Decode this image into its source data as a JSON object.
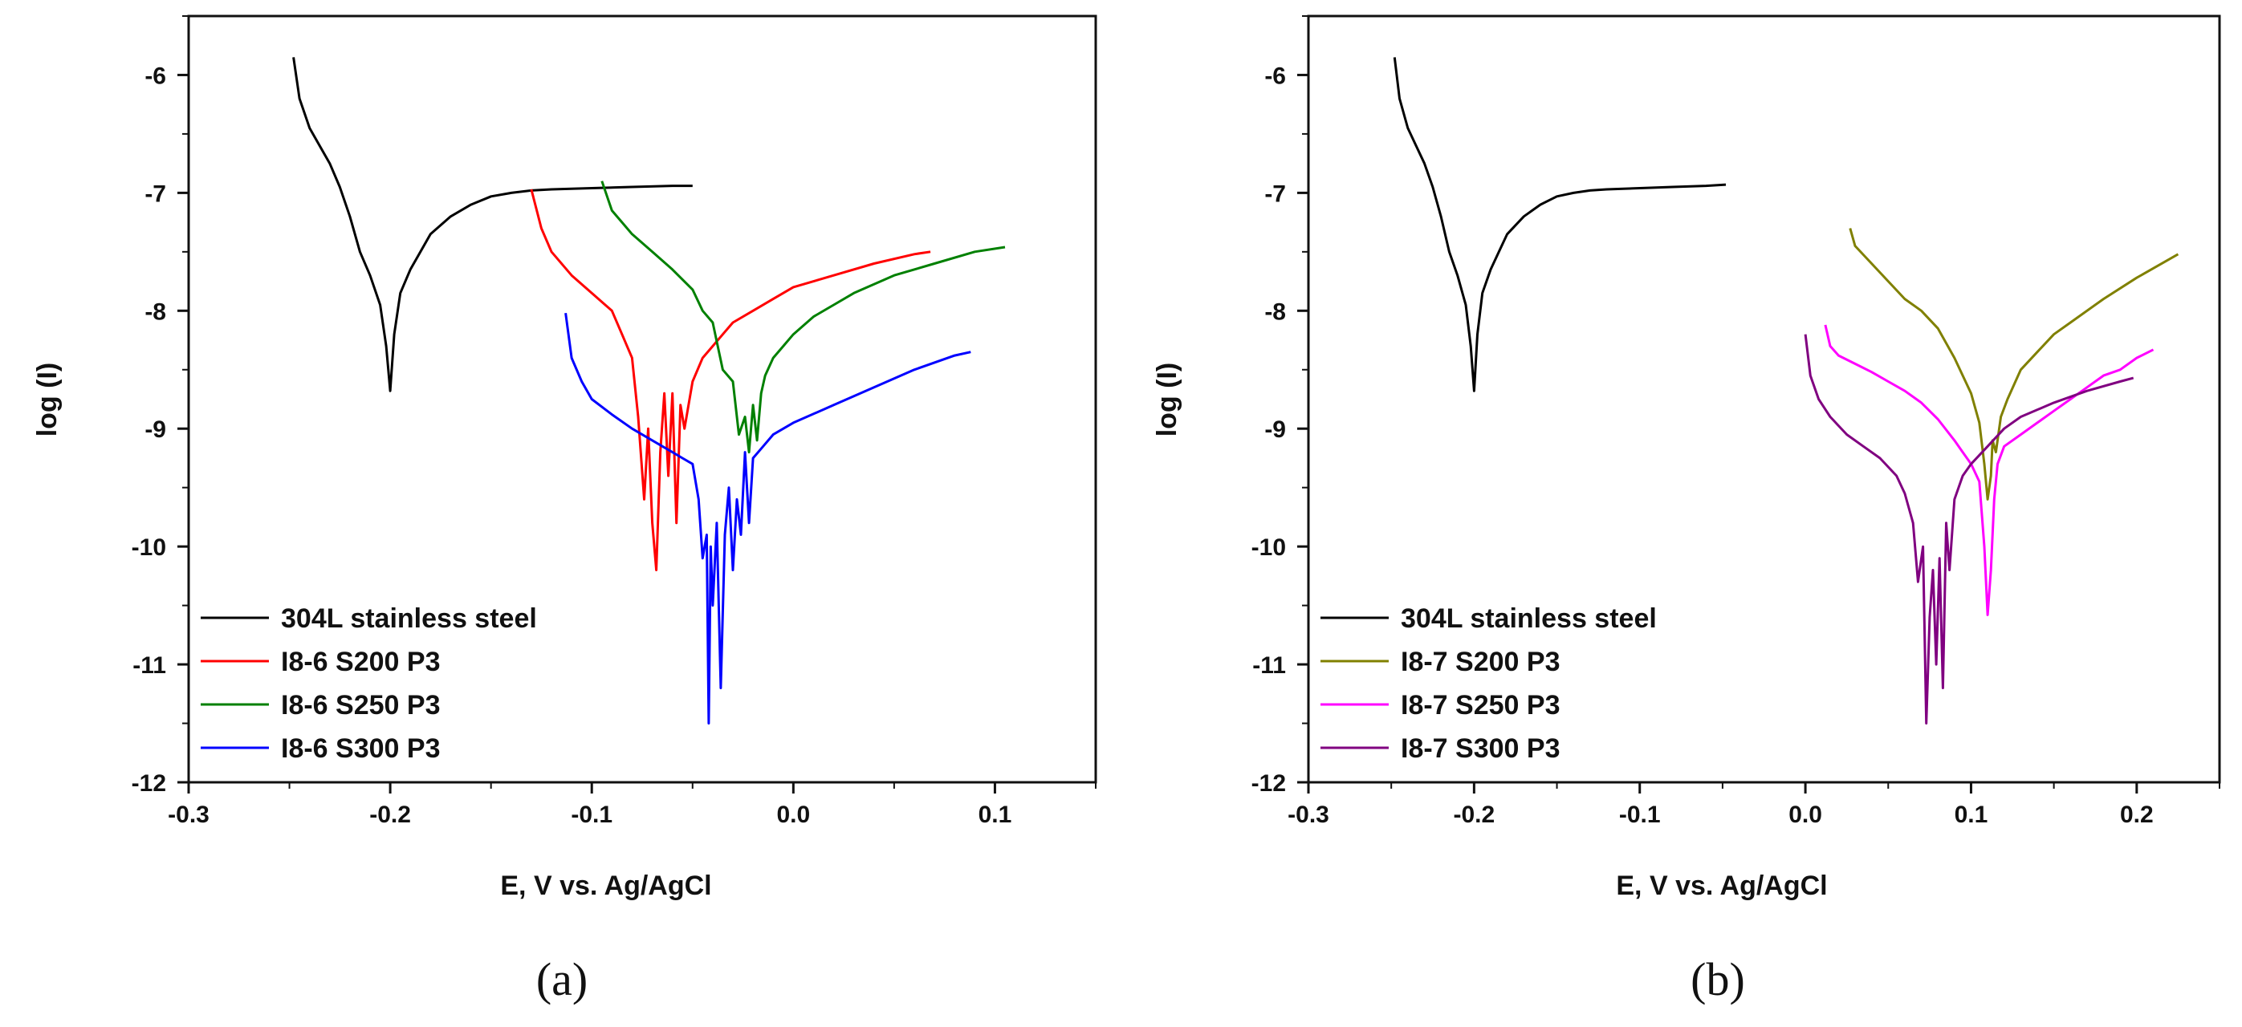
{
  "figure": {
    "captions": [
      "(a)",
      "(b)"
    ]
  },
  "chart_data": [
    {
      "type": "line",
      "title": "",
      "caption": "(a)",
      "xlabel": "E, V vs. Ag/AgCl",
      "ylabel": "log (I)",
      "xlim": [
        -0.3,
        0.15
      ],
      "ylim": [
        -12,
        -5.5
      ],
      "xticks": [
        -0.3,
        -0.2,
        -0.1,
        0.0,
        0.1
      ],
      "xtick_labels": [
        "-0.3",
        "-0.2",
        "-0.1",
        "0.0",
        "0.1"
      ],
      "yticks": [
        -12,
        -11,
        -10,
        -9,
        -8,
        -7,
        -6
      ],
      "ytick_labels": [
        "-12",
        "-11",
        "-10",
        "-9",
        "-8",
        "-7",
        "-6"
      ],
      "legend_position": "bottom-left",
      "series": [
        {
          "name": "304L stainless steel",
          "color": "#000000",
          "x": [
            -0.248,
            -0.245,
            -0.24,
            -0.235,
            -0.23,
            -0.225,
            -0.22,
            -0.215,
            -0.21,
            -0.205,
            -0.202,
            -0.2,
            -0.198,
            -0.195,
            -0.19,
            -0.185,
            -0.18,
            -0.17,
            -0.16,
            -0.15,
            -0.14,
            -0.13,
            -0.12,
            -0.1,
            -0.08,
            -0.06,
            -0.05
          ],
          "y": [
            -5.85,
            -6.2,
            -6.45,
            -6.6,
            -6.75,
            -6.95,
            -7.2,
            -7.5,
            -7.7,
            -7.95,
            -8.3,
            -8.68,
            -8.2,
            -7.85,
            -7.65,
            -7.5,
            -7.35,
            -7.2,
            -7.1,
            -7.03,
            -7.0,
            -6.98,
            -6.97,
            -6.96,
            -6.95,
            -6.94,
            -6.94
          ]
        },
        {
          "name": "I8-6 S200 P3",
          "color": "#ff0000",
          "x": [
            -0.13,
            -0.125,
            -0.12,
            -0.11,
            -0.1,
            -0.09,
            -0.085,
            -0.08,
            -0.077,
            -0.074,
            -0.072,
            -0.07,
            -0.068,
            -0.066,
            -0.064,
            -0.062,
            -0.06,
            -0.058,
            -0.056,
            -0.054,
            -0.05,
            -0.045,
            -0.04,
            -0.035,
            -0.03,
            -0.02,
            -0.01,
            0.0,
            0.02,
            0.04,
            0.06,
            0.068
          ],
          "y": [
            -6.97,
            -7.3,
            -7.5,
            -7.7,
            -7.85,
            -8.0,
            -8.2,
            -8.4,
            -8.9,
            -9.6,
            -9.0,
            -9.8,
            -10.2,
            -9.2,
            -8.7,
            -9.4,
            -8.7,
            -9.8,
            -8.8,
            -9.0,
            -8.6,
            -8.4,
            -8.3,
            -8.2,
            -8.1,
            -8.0,
            -7.9,
            -7.8,
            -7.7,
            -7.6,
            -7.52,
            -7.5
          ]
        },
        {
          "name": "I8-6 S250 P3",
          "color": "#008000",
          "x": [
            -0.095,
            -0.09,
            -0.085,
            -0.08,
            -0.07,
            -0.06,
            -0.05,
            -0.045,
            -0.04,
            -0.035,
            -0.03,
            -0.027,
            -0.024,
            -0.022,
            -0.02,
            -0.018,
            -0.016,
            -0.014,
            -0.01,
            -0.005,
            0.0,
            0.01,
            0.02,
            0.03,
            0.05,
            0.07,
            0.09,
            0.105
          ],
          "y": [
            -6.9,
            -7.15,
            -7.25,
            -7.35,
            -7.5,
            -7.65,
            -7.82,
            -8.0,
            -8.1,
            -8.5,
            -8.6,
            -9.05,
            -8.9,
            -9.2,
            -8.8,
            -9.1,
            -8.7,
            -8.55,
            -8.4,
            -8.3,
            -8.2,
            -8.05,
            -7.95,
            -7.85,
            -7.7,
            -7.6,
            -7.5,
            -7.46
          ]
        },
        {
          "name": "I8-6 S300 P3",
          "color": "#0000ff",
          "x": [
            -0.113,
            -0.11,
            -0.105,
            -0.1,
            -0.09,
            -0.08,
            -0.07,
            -0.06,
            -0.055,
            -0.05,
            -0.047,
            -0.045,
            -0.043,
            -0.042,
            -0.041,
            -0.04,
            -0.038,
            -0.036,
            -0.034,
            -0.032,
            -0.03,
            -0.028,
            -0.026,
            -0.024,
            -0.022,
            -0.02,
            -0.015,
            -0.01,
            0.0,
            0.02,
            0.04,
            0.06,
            0.08,
            0.088
          ],
          "y": [
            -8.02,
            -8.4,
            -8.6,
            -8.75,
            -8.88,
            -9.0,
            -9.1,
            -9.2,
            -9.25,
            -9.3,
            -9.6,
            -10.1,
            -9.9,
            -11.5,
            -10.0,
            -10.5,
            -9.8,
            -11.2,
            -9.9,
            -9.5,
            -10.2,
            -9.6,
            -9.9,
            -9.2,
            -9.8,
            -9.25,
            -9.15,
            -9.05,
            -8.95,
            -8.8,
            -8.65,
            -8.5,
            -8.38,
            -8.35
          ]
        }
      ]
    },
    {
      "type": "line",
      "title": "",
      "caption": "(b)",
      "xlabel": "E, V vs. Ag/AgCl",
      "ylabel": "log (I)",
      "xlim": [
        -0.3,
        0.25
      ],
      "ylim": [
        -12,
        -5.5
      ],
      "xticks": [
        -0.3,
        -0.2,
        -0.1,
        0.0,
        0.1,
        0.2
      ],
      "xtick_labels": [
        "-0.3",
        "-0.2",
        "-0.1",
        "0.0",
        "0.1",
        "0.2"
      ],
      "yticks": [
        -12,
        -11,
        -10,
        -9,
        -8,
        -7,
        -6
      ],
      "ytick_labels": [
        "-12",
        "-11",
        "-10",
        "-9",
        "-8",
        "-7",
        "-6"
      ],
      "legend_position": "bottom-left",
      "series": [
        {
          "name": "304L stainless steel",
          "color": "#000000",
          "x": [
            -0.248,
            -0.245,
            -0.24,
            -0.235,
            -0.23,
            -0.225,
            -0.22,
            -0.215,
            -0.21,
            -0.205,
            -0.202,
            -0.2,
            -0.198,
            -0.195,
            -0.19,
            -0.185,
            -0.18,
            -0.17,
            -0.16,
            -0.15,
            -0.14,
            -0.13,
            -0.12,
            -0.1,
            -0.08,
            -0.06,
            -0.048
          ],
          "y": [
            -5.85,
            -6.2,
            -6.45,
            -6.6,
            -6.75,
            -6.95,
            -7.2,
            -7.5,
            -7.7,
            -7.95,
            -8.3,
            -8.68,
            -8.2,
            -7.85,
            -7.65,
            -7.5,
            -7.35,
            -7.2,
            -7.1,
            -7.03,
            -7.0,
            -6.98,
            -6.97,
            -6.96,
            -6.95,
            -6.94,
            -6.93
          ]
        },
        {
          "name": "I8-7 S200 P3",
          "color": "#808000",
          "x": [
            0.027,
            0.03,
            0.04,
            0.05,
            0.06,
            0.07,
            0.08,
            0.09,
            0.1,
            0.105,
            0.108,
            0.11,
            0.112,
            0.113,
            0.115,
            0.118,
            0.122,
            0.13,
            0.14,
            0.15,
            0.16,
            0.18,
            0.2,
            0.225
          ],
          "y": [
            -7.3,
            -7.45,
            -7.6,
            -7.75,
            -7.9,
            -8.0,
            -8.15,
            -8.4,
            -8.7,
            -8.95,
            -9.3,
            -9.6,
            -9.4,
            -9.1,
            -9.2,
            -8.9,
            -8.75,
            -8.5,
            -8.35,
            -8.2,
            -8.1,
            -7.9,
            -7.72,
            -7.52
          ]
        },
        {
          "name": "I8-7 S250 P3",
          "color": "#ff00ff",
          "x": [
            0.012,
            0.015,
            0.02,
            0.03,
            0.04,
            0.05,
            0.06,
            0.07,
            0.08,
            0.09,
            0.095,
            0.1,
            0.105,
            0.108,
            0.11,
            0.112,
            0.114,
            0.116,
            0.12,
            0.13,
            0.14,
            0.15,
            0.16,
            0.17,
            0.18,
            0.19,
            0.2,
            0.21
          ],
          "y": [
            -8.12,
            -8.3,
            -8.38,
            -8.45,
            -8.52,
            -8.6,
            -8.68,
            -8.78,
            -8.92,
            -9.1,
            -9.2,
            -9.3,
            -9.45,
            -10.0,
            -10.58,
            -10.2,
            -9.6,
            -9.3,
            -9.15,
            -9.05,
            -8.95,
            -8.85,
            -8.75,
            -8.65,
            -8.55,
            -8.5,
            -8.4,
            -8.33
          ]
        },
        {
          "name": "I8-7 S300 P3",
          "color": "#800080",
          "x": [
            0.0,
            0.003,
            0.008,
            0.015,
            0.025,
            0.035,
            0.045,
            0.055,
            0.06,
            0.065,
            0.068,
            0.071,
            0.073,
            0.075,
            0.077,
            0.079,
            0.081,
            0.083,
            0.085,
            0.087,
            0.09,
            0.095,
            0.1,
            0.11,
            0.12,
            0.13,
            0.15,
            0.17,
            0.19,
            0.198
          ],
          "y": [
            -8.2,
            -8.55,
            -8.75,
            -8.9,
            -9.05,
            -9.15,
            -9.25,
            -9.4,
            -9.55,
            -9.8,
            -10.3,
            -10.0,
            -11.5,
            -10.6,
            -10.2,
            -11.0,
            -10.1,
            -11.2,
            -9.8,
            -10.2,
            -9.6,
            -9.4,
            -9.3,
            -9.15,
            -9.0,
            -8.9,
            -8.78,
            -8.68,
            -8.6,
            -8.57
          ]
        }
      ]
    }
  ]
}
